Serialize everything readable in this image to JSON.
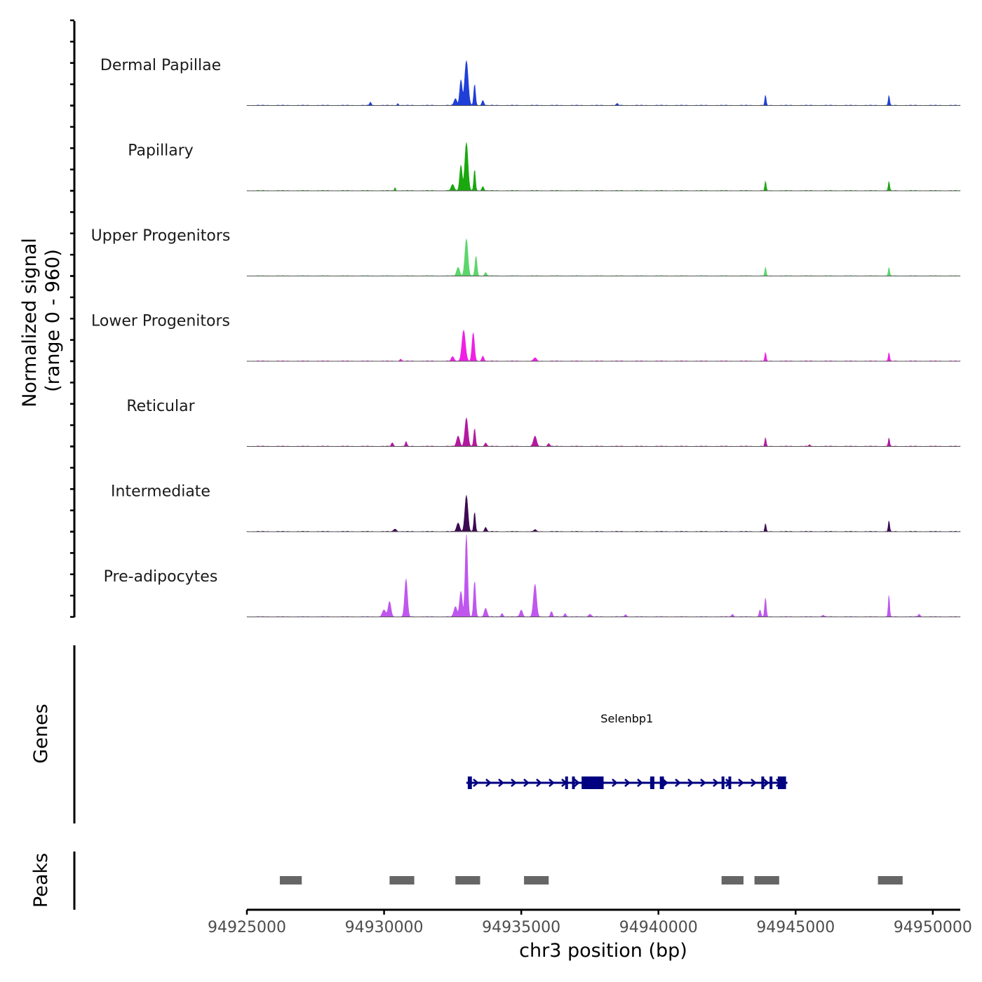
{
  "chart_data": {
    "type": "area",
    "chromosome": "chr3",
    "xlabel": "chr3 position (bp)",
    "xlim": [
      94925000,
      94951000
    ],
    "xticks": [
      94925000,
      94930000,
      94935000,
      94940000,
      94945000,
      94950000
    ],
    "xtick_labels": [
      "94925000",
      "94930000",
      "94935000",
      "94940000",
      "94945000",
      "94950000"
    ],
    "coverage": {
      "ylabel_line1": "Normalized signal",
      "ylabel_line2": "(range 0 - 960)",
      "ylim": [
        0,
        960
      ],
      "series": [
        {
          "name": "Dermal Papillae",
          "color": "#1f3fd8",
          "peaks": [
            {
              "center": 94929500,
              "width": 120,
              "height": 40
            },
            {
              "center": 94930500,
              "width": 100,
              "height": 25
            },
            {
              "center": 94932600,
              "width": 200,
              "height": 80
            },
            {
              "center": 94933000,
              "width": 250,
              "height": 520
            },
            {
              "center": 94932800,
              "width": 180,
              "height": 300
            },
            {
              "center": 94933300,
              "width": 130,
              "height": 250
            },
            {
              "center": 94933600,
              "width": 150,
              "height": 60
            },
            {
              "center": 94938500,
              "width": 150,
              "height": 20
            },
            {
              "center": 94943900,
              "width": 100,
              "height": 120
            },
            {
              "center": 94948400,
              "width": 100,
              "height": 120
            }
          ]
        },
        {
          "name": "Papillary",
          "color": "#1aa80f",
          "peaks": [
            {
              "center": 94930400,
              "width": 80,
              "height": 40
            },
            {
              "center": 94932500,
              "width": 220,
              "height": 70
            },
            {
              "center": 94933000,
              "width": 230,
              "height": 560
            },
            {
              "center": 94932800,
              "width": 180,
              "height": 300
            },
            {
              "center": 94933300,
              "width": 120,
              "height": 250
            },
            {
              "center": 94933600,
              "width": 150,
              "height": 50
            },
            {
              "center": 94943900,
              "width": 100,
              "height": 110
            },
            {
              "center": 94948400,
              "width": 100,
              "height": 110
            }
          ]
        },
        {
          "name": "Upper Progenitors",
          "color": "#5cd66b",
          "peaks": [
            {
              "center": 94932700,
              "width": 220,
              "height": 100
            },
            {
              "center": 94933000,
              "width": 220,
              "height": 430
            },
            {
              "center": 94933350,
              "width": 150,
              "height": 230
            },
            {
              "center": 94933700,
              "width": 150,
              "height": 40
            },
            {
              "center": 94943900,
              "width": 100,
              "height": 100
            },
            {
              "center": 94948400,
              "width": 100,
              "height": 100
            }
          ]
        },
        {
          "name": "Lower Progenitors",
          "color": "#f01fe6",
          "peaks": [
            {
              "center": 94930600,
              "width": 120,
              "height": 25
            },
            {
              "center": 94932500,
              "width": 200,
              "height": 50
            },
            {
              "center": 94932900,
              "width": 250,
              "height": 360
            },
            {
              "center": 94933250,
              "width": 180,
              "height": 330
            },
            {
              "center": 94933600,
              "width": 160,
              "height": 60
            },
            {
              "center": 94935500,
              "width": 200,
              "height": 40
            },
            {
              "center": 94943900,
              "width": 100,
              "height": 100
            },
            {
              "center": 94948400,
              "width": 100,
              "height": 100
            }
          ]
        },
        {
          "name": "Reticular",
          "color": "#b3199e",
          "peaks": [
            {
              "center": 94930300,
              "width": 150,
              "height": 40
            },
            {
              "center": 94930800,
              "width": 120,
              "height": 55
            },
            {
              "center": 94932700,
              "width": 220,
              "height": 120
            },
            {
              "center": 94933000,
              "width": 220,
              "height": 330
            },
            {
              "center": 94933300,
              "width": 130,
              "height": 210
            },
            {
              "center": 94933700,
              "width": 150,
              "height": 40
            },
            {
              "center": 94935500,
              "width": 220,
              "height": 120
            },
            {
              "center": 94936000,
              "width": 150,
              "height": 35
            },
            {
              "center": 94943900,
              "width": 100,
              "height": 100
            },
            {
              "center": 94945500,
              "width": 100,
              "height": 20
            },
            {
              "center": 94948400,
              "width": 100,
              "height": 100
            }
          ]
        },
        {
          "name": "Intermediate",
          "color": "#3d0a52",
          "peaks": [
            {
              "center": 94930400,
              "width": 200,
              "height": 30
            },
            {
              "center": 94932700,
              "width": 220,
              "height": 100
            },
            {
              "center": 94933000,
              "width": 220,
              "height": 420
            },
            {
              "center": 94933300,
              "width": 120,
              "height": 230
            },
            {
              "center": 94933700,
              "width": 150,
              "height": 50
            },
            {
              "center": 94935500,
              "width": 150,
              "height": 25
            },
            {
              "center": 94943900,
              "width": 100,
              "height": 90
            },
            {
              "center": 94948400,
              "width": 100,
              "height": 130
            }
          ]
        },
        {
          "name": "Pre-adipocytes",
          "color": "#bf57ee",
          "peaks": [
            {
              "center": 94930200,
              "width": 200,
              "height": 180
            },
            {
              "center": 94930800,
              "width": 200,
              "height": 440
            },
            {
              "center": 94930000,
              "width": 250,
              "height": 80
            },
            {
              "center": 94932600,
              "width": 220,
              "height": 120
            },
            {
              "center": 94933000,
              "width": 180,
              "height": 960
            },
            {
              "center": 94932800,
              "width": 200,
              "height": 300
            },
            {
              "center": 94933300,
              "width": 150,
              "height": 420
            },
            {
              "center": 94933700,
              "width": 200,
              "height": 100
            },
            {
              "center": 94934300,
              "width": 150,
              "height": 40
            },
            {
              "center": 94935000,
              "width": 200,
              "height": 80
            },
            {
              "center": 94935500,
              "width": 220,
              "height": 380
            },
            {
              "center": 94936100,
              "width": 150,
              "height": 60
            },
            {
              "center": 94936600,
              "width": 150,
              "height": 40
            },
            {
              "center": 94937500,
              "width": 200,
              "height": 30
            },
            {
              "center": 94938800,
              "width": 150,
              "height": 25
            },
            {
              "center": 94942700,
              "width": 150,
              "height": 30
            },
            {
              "center": 94943700,
              "width": 130,
              "height": 80
            },
            {
              "center": 94943900,
              "width": 120,
              "height": 220
            },
            {
              "center": 94946000,
              "width": 150,
              "height": 20
            },
            {
              "center": 94948400,
              "width": 100,
              "height": 260
            },
            {
              "center": 94949500,
              "width": 150,
              "height": 30
            }
          ]
        }
      ]
    },
    "genes": {
      "ylabel": "Genes",
      "items": [
        {
          "name": "Selenbp1",
          "strand": "+",
          "color": "#000080",
          "start": 94933000,
          "end": 94944700,
          "exons": [
            [
              94933050,
              94933200
            ],
            [
              94936600,
              94936700
            ],
            [
              94936850,
              94936950
            ],
            [
              94937200,
              94938000
            ],
            [
              94939700,
              94939850
            ],
            [
              94940050,
              94940200
            ],
            [
              94942300,
              94942400
            ],
            [
              94942550,
              94942650
            ],
            [
              94943750,
              94943850
            ],
            [
              94944050,
              94944150
            ],
            [
              94944350,
              94944650
            ]
          ]
        }
      ]
    },
    "peaks": {
      "ylabel": "Peaks",
      "color": "#666666",
      "regions": [
        [
          94926200,
          94927000
        ],
        [
          94930200,
          94931100
        ],
        [
          94932600,
          94933500
        ],
        [
          94935100,
          94936000
        ],
        [
          94942300,
          94943100
        ],
        [
          94943500,
          94944400
        ],
        [
          94948000,
          94948900
        ]
      ]
    }
  }
}
